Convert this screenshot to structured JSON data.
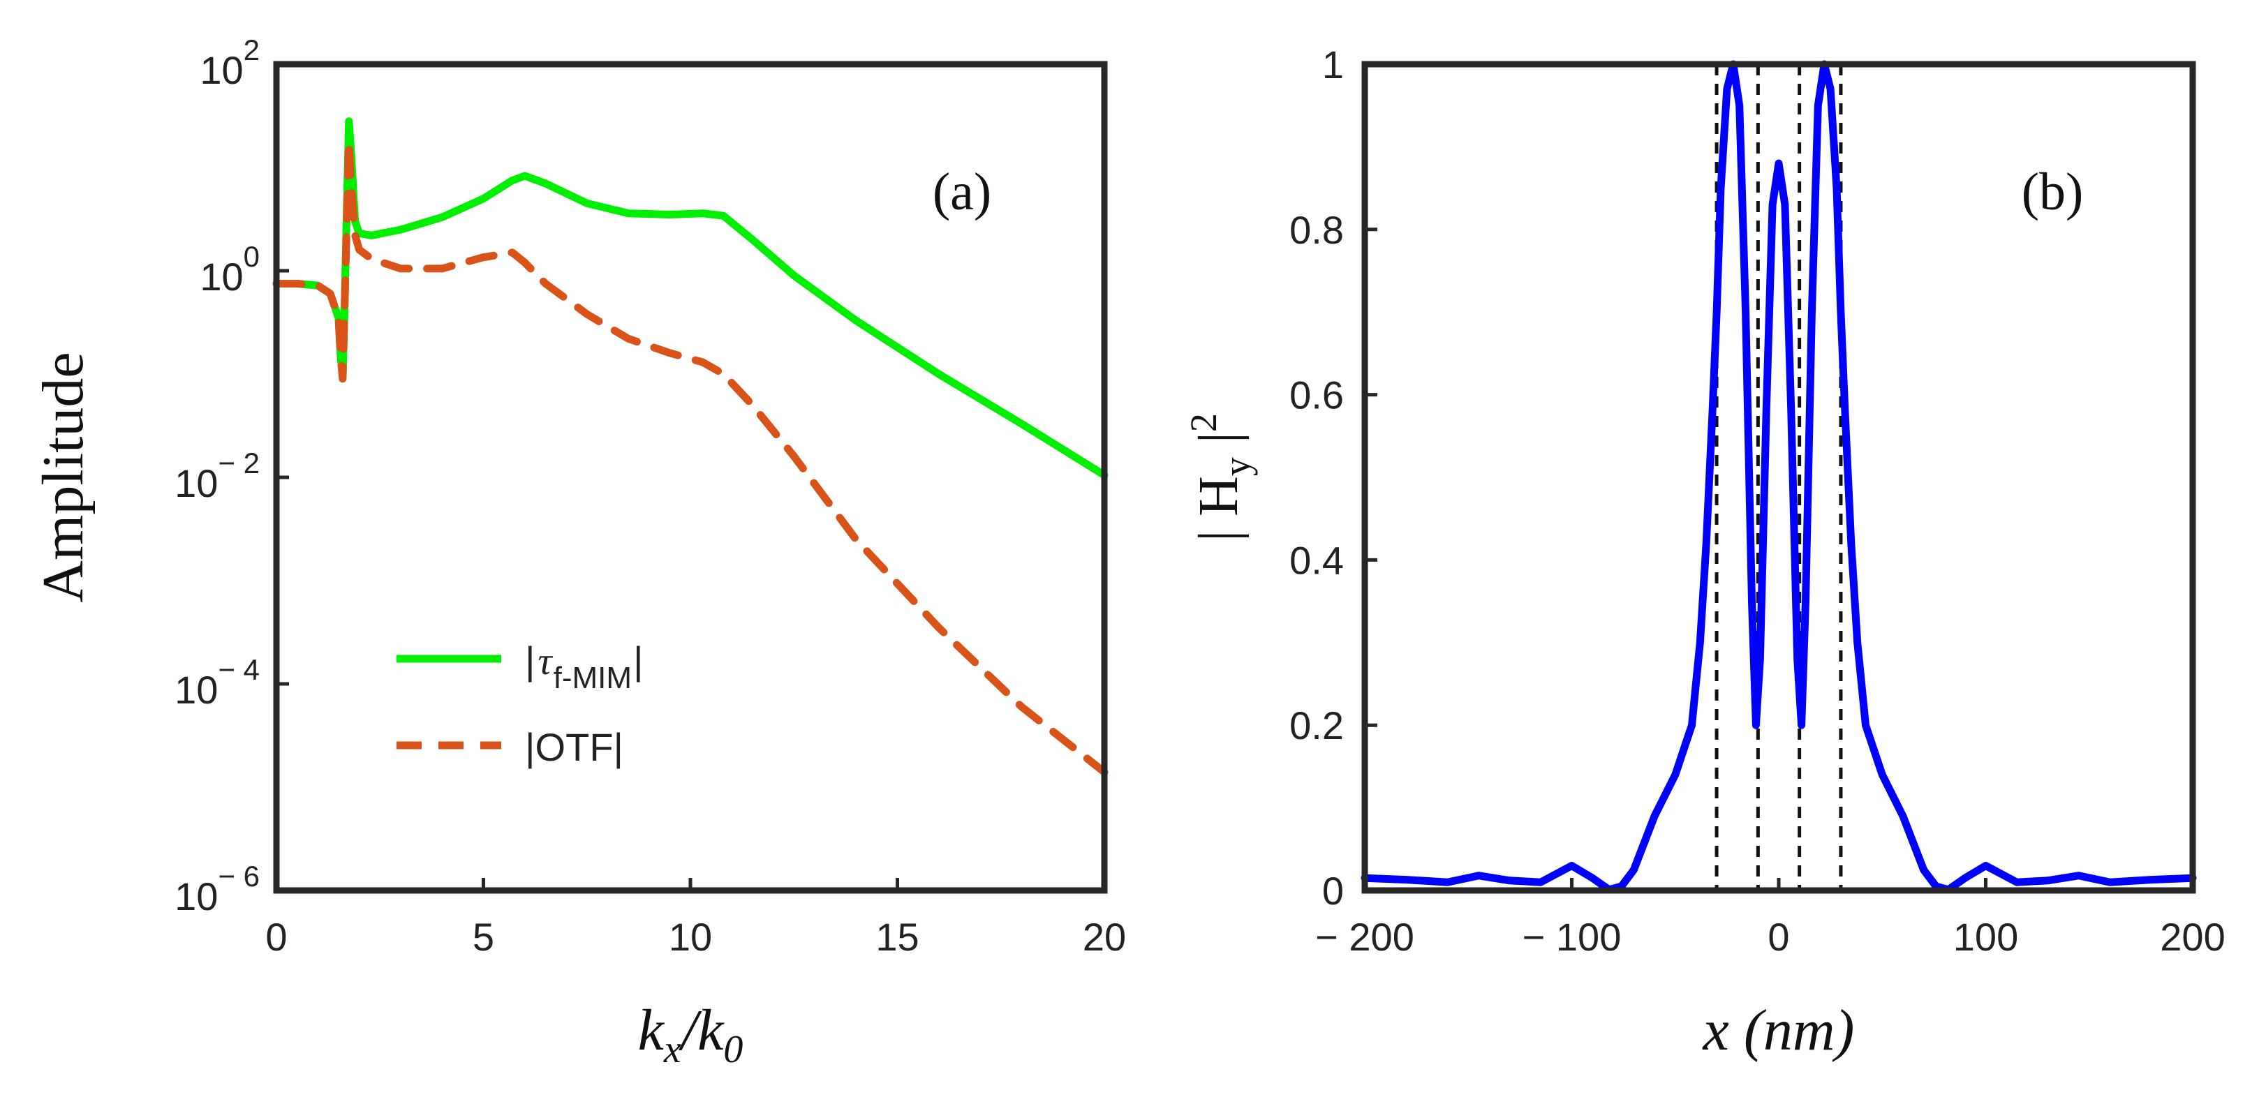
{
  "chart_data": [
    {
      "panel": "(a)",
      "type": "line",
      "yscale": "log",
      "xlabel": {
        "main": "k",
        "sub1": "x",
        "sep": "/k",
        "sub2": "0"
      },
      "ylabel": "Amplitude",
      "xlim": [
        0,
        20
      ],
      "ylim": [
        1e-06,
        100
      ],
      "xticks": [
        0,
        5,
        10,
        15,
        20
      ],
      "xtick_labels": [
        "0",
        "5",
        "10",
        "15",
        "20"
      ],
      "yticks": [
        {
          "value": 1e-06,
          "base": "10",
          "exp": "− 6"
        },
        {
          "value": 0.0001,
          "base": "10",
          "exp": "− 4"
        },
        {
          "value": 0.01,
          "base": "10",
          "exp": "− 2"
        },
        {
          "value": 1,
          "base": "10",
          "exp": "0"
        },
        {
          "value": 100,
          "base": "10",
          "exp": "2"
        }
      ],
      "series": [
        {
          "name": "|τf-MIM|",
          "legend": {
            "pre": "|",
            "tau": "τ",
            "sub": "f-MIM",
            "post": "|"
          },
          "color": "#00ee00",
          "style": "solid",
          "x": [
            0,
            0.5,
            1.0,
            1.3,
            1.5,
            1.55,
            1.6,
            1.65,
            1.7,
            1.75,
            1.8,
            1.9,
            2.0,
            2.3,
            3.0,
            4.0,
            5.0,
            5.7,
            6.0,
            6.5,
            7.5,
            8.5,
            9.5,
            10.3,
            10.8,
            11.5,
            12.5,
            14.0,
            16.0,
            18.0,
            20.0
          ],
          "y": [
            0.75,
            0.75,
            0.72,
            0.6,
            0.35,
            0.15,
            0.09,
            0.5,
            4,
            28,
            15,
            3,
            2.3,
            2.2,
            2.5,
            3.3,
            5.0,
            7.5,
            8.3,
            7.0,
            4.5,
            3.6,
            3.5,
            3.6,
            3.4,
            2.0,
            0.9,
            0.33,
            0.1,
            0.033,
            0.0105
          ]
        },
        {
          "name": "|OTF|",
          "legend": {
            "pre": "|",
            "tau": "",
            "sub": "",
            "post": "OTF|"
          },
          "color": "#d95319",
          "style": "dashed",
          "x": [
            0,
            0.5,
            1.0,
            1.3,
            1.5,
            1.55,
            1.6,
            1.65,
            1.7,
            1.75,
            1.8,
            1.9,
            2.0,
            2.3,
            3.0,
            4.0,
            5.0,
            5.7,
            6.0,
            6.5,
            7.5,
            8.5,
            9.5,
            10.3,
            10.8,
            11.5,
            12.5,
            14.0,
            16.0,
            18.0,
            20.0
          ],
          "y": [
            0.75,
            0.75,
            0.72,
            0.6,
            0.35,
            0.15,
            0.09,
            0.5,
            3,
            18,
            7,
            2.2,
            1.6,
            1.3,
            1.05,
            1.05,
            1.35,
            1.5,
            1.2,
            0.75,
            0.38,
            0.22,
            0.16,
            0.13,
            0.1,
            0.05,
            0.016,
            0.0025,
            0.00035,
            6e-05,
            1.4e-05
          ]
        }
      ]
    },
    {
      "panel": "(b)",
      "type": "line",
      "xlabel": {
        "var": "x",
        "unit": " (nm)"
      },
      "ylabel": {
        "pre": "| H",
        "sub": "y",
        "post": " |",
        "sup": "2"
      },
      "xlim": [
        -200,
        200
      ],
      "ylim": [
        0,
        1
      ],
      "xticks": [
        -200,
        -100,
        0,
        100,
        200
      ],
      "xtick_labels": [
        "− 200",
        "− 100",
        "0",
        "100",
        "200"
      ],
      "yticks": [
        0,
        0.2,
        0.4,
        0.6,
        0.8,
        1
      ],
      "ytick_labels": [
        "0",
        "0.2",
        "0.4",
        "0.6",
        "0.8",
        "1"
      ],
      "vlines": [
        -30,
        -10,
        10,
        30
      ],
      "series": [
        {
          "name": "|Hy|^2",
          "color": "#0000ff",
          "style": "solid",
          "x": [
            -200,
            -180,
            -160,
            -145,
            -130,
            -115,
            -100,
            -90,
            -82,
            -76,
            -70,
            -60,
            -50,
            -42,
            -38,
            -35,
            -32,
            -30,
            -28,
            -25,
            -22,
            -19,
            -16,
            -13,
            -11,
            -9,
            -6,
            -3,
            0,
            3,
            6,
            9,
            11,
            13,
            16,
            19,
            22,
            25,
            28,
            30,
            32,
            35,
            38,
            42,
            50,
            60,
            70,
            76,
            82,
            90,
            100,
            115,
            130,
            145,
            160,
            180,
            200
          ],
          "y": [
            0.015,
            0.013,
            0.01,
            0.018,
            0.012,
            0.01,
            0.03,
            0.015,
            0.001,
            0.005,
            0.025,
            0.09,
            0.14,
            0.2,
            0.3,
            0.42,
            0.58,
            0.7,
            0.85,
            0.97,
            1.0,
            0.95,
            0.7,
            0.35,
            0.2,
            0.28,
            0.58,
            0.83,
            0.88,
            0.83,
            0.58,
            0.28,
            0.2,
            0.35,
            0.7,
            0.95,
            1.0,
            0.97,
            0.85,
            0.7,
            0.58,
            0.42,
            0.3,
            0.2,
            0.14,
            0.09,
            0.025,
            0.005,
            0.001,
            0.015,
            0.03,
            0.01,
            0.012,
            0.018,
            0.01,
            0.013,
            0.015
          ]
        }
      ]
    }
  ]
}
